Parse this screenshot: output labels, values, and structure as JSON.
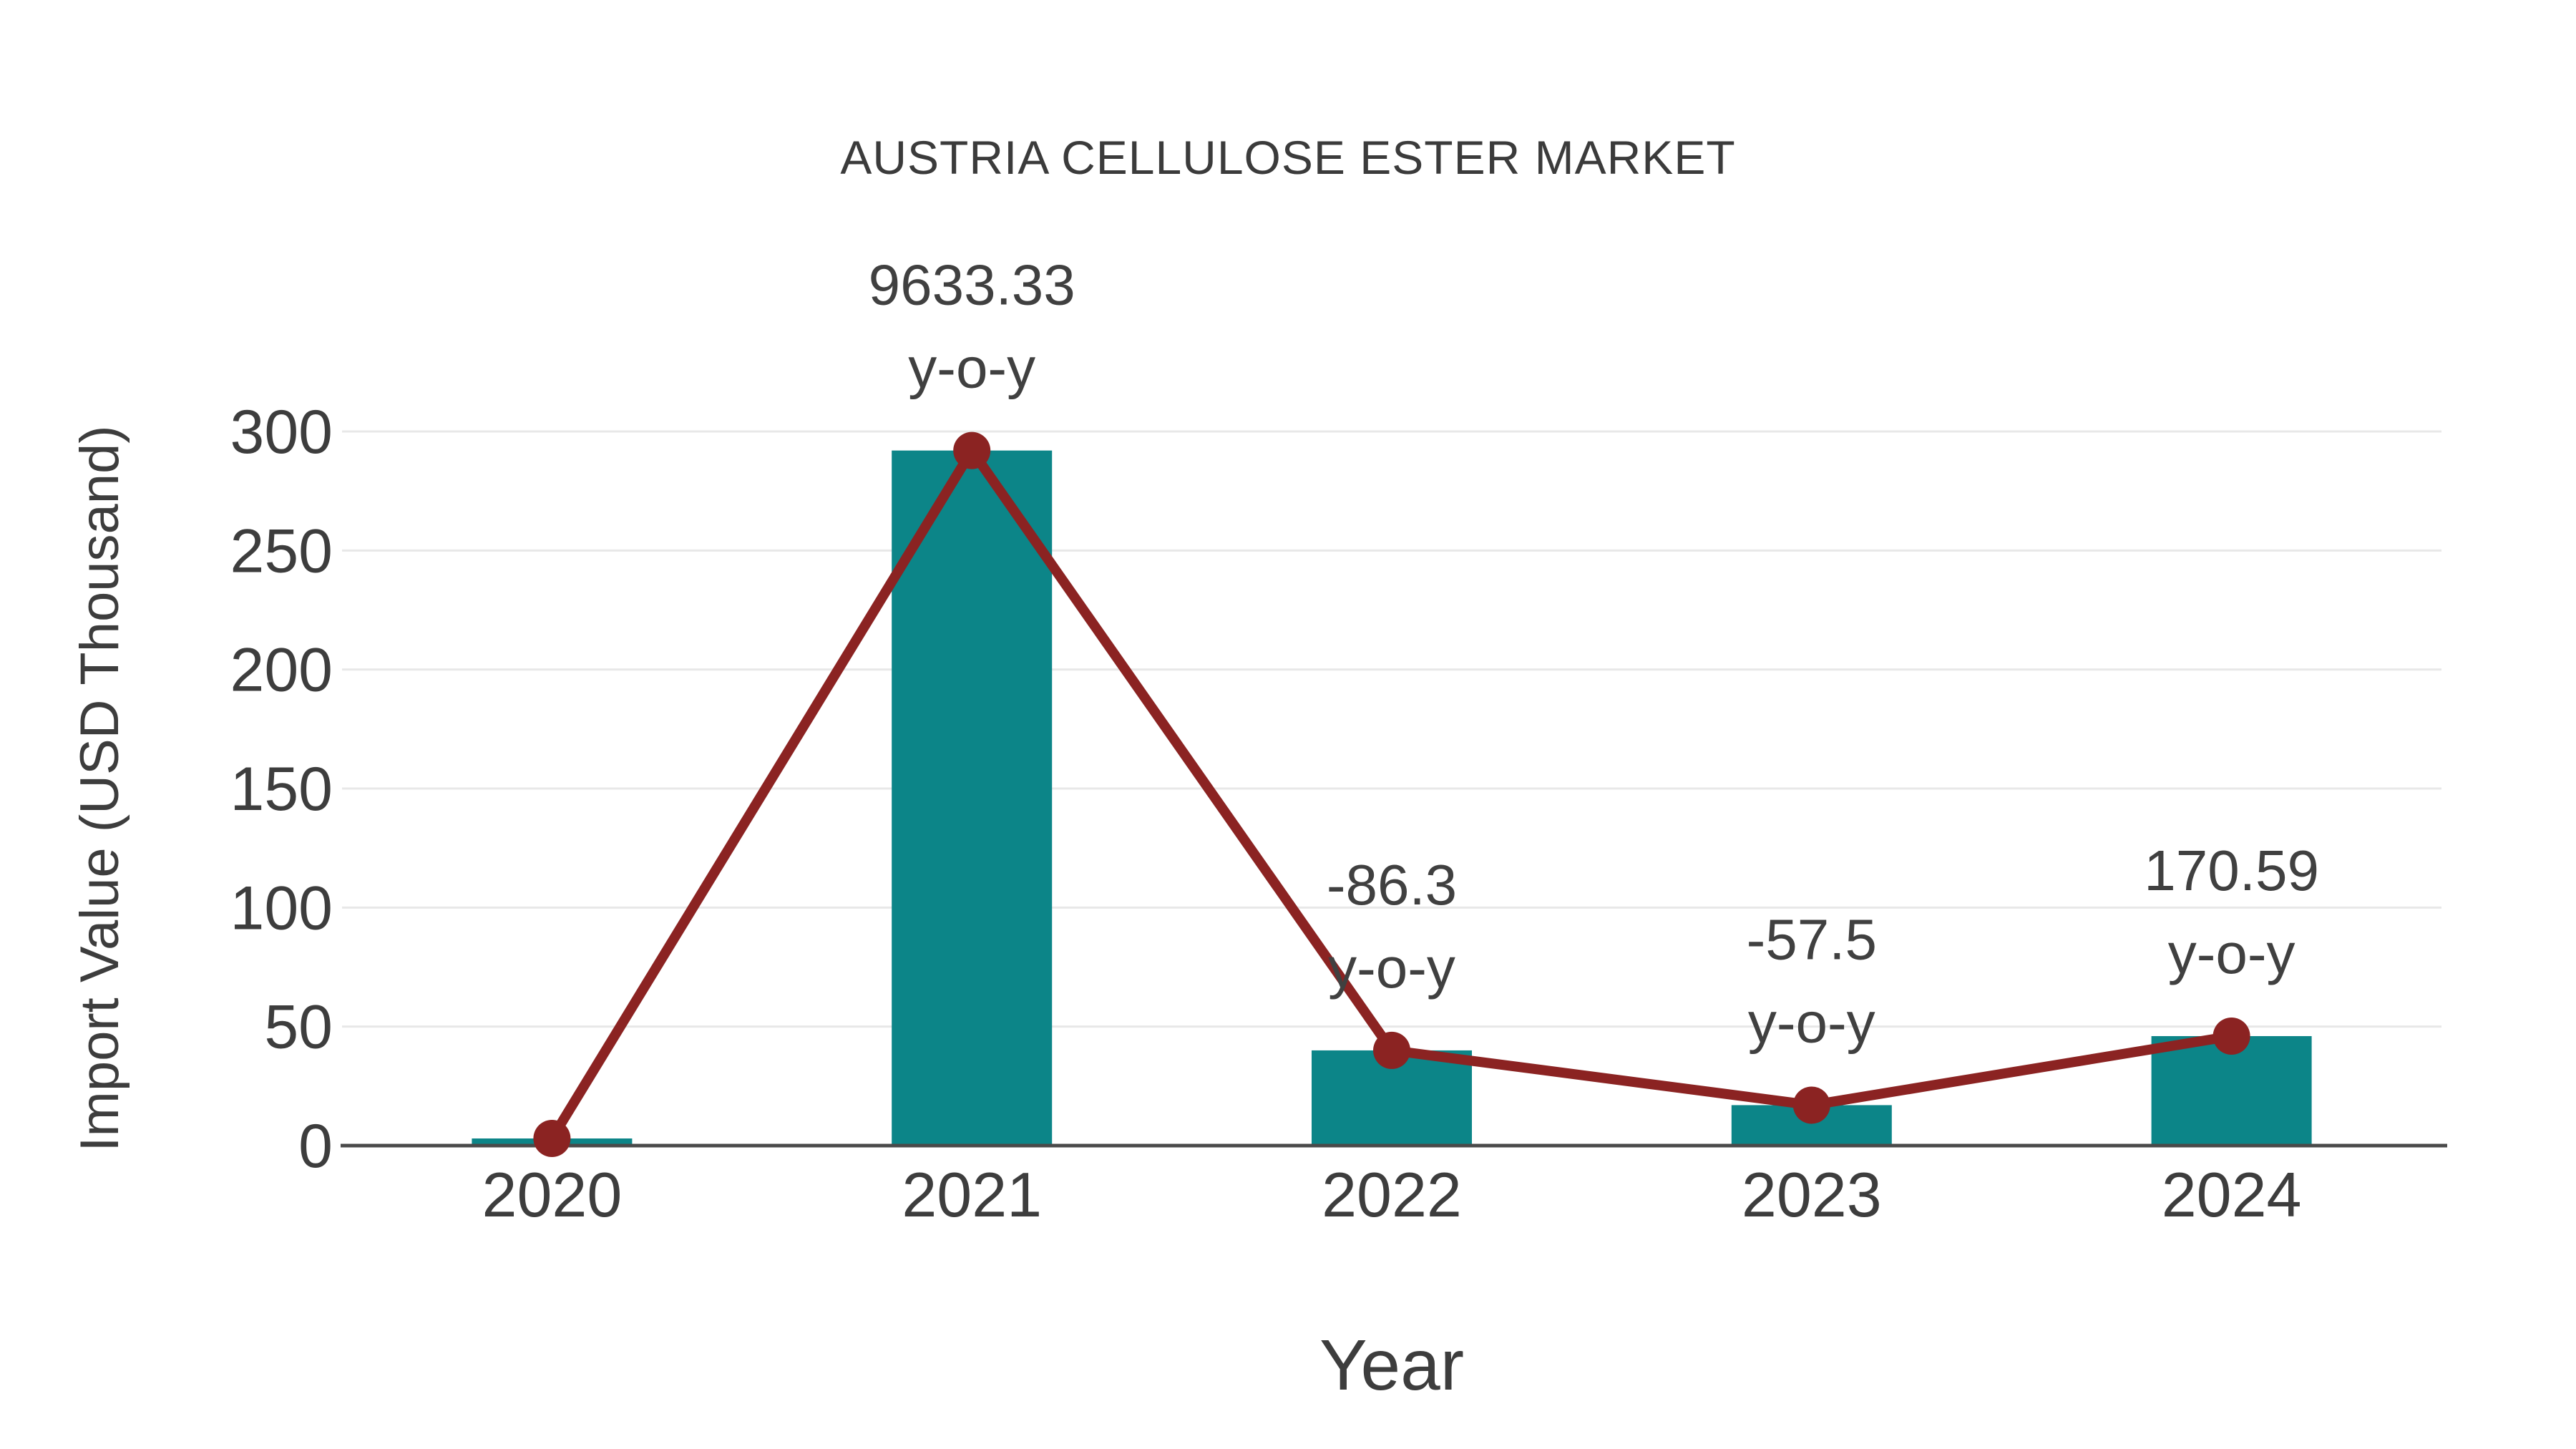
{
  "chart_data": {
    "type": "bar",
    "title": "AUSTRIA CELLULOSE ESTER MARKET",
    "xlabel": "Year",
    "ylabel": "Import Value (USD Thousand)",
    "categories": [
      "2020",
      "2021",
      "2022",
      "2023",
      "2024"
    ],
    "series": [
      {
        "name": "Import Value (USD Thousand)",
        "type": "bar",
        "values": [
          3,
          292,
          40,
          17,
          46
        ]
      },
      {
        "name": "y-o-y growth line",
        "type": "line",
        "values": [
          3,
          292,
          40,
          17,
          46
        ]
      }
    ],
    "annotations": [
      {
        "category": "2021",
        "value_label": "9633.33",
        "suffix_label": "y-o-y",
        "yoy_percent": 9633.33
      },
      {
        "category": "2022",
        "value_label": "-86.3",
        "suffix_label": "y-o-y",
        "yoy_percent": -86.3
      },
      {
        "category": "2023",
        "value_label": "-57.5",
        "suffix_label": "y-o-y",
        "yoy_percent": -57.5
      },
      {
        "category": "2024",
        "value_label": "170.59",
        "suffix_label": "y-o-y",
        "yoy_percent": 170.59
      }
    ],
    "ylim": [
      0,
      300
    ],
    "yticks": [
      0,
      50,
      100,
      150,
      200,
      250,
      300
    ],
    "grid": true,
    "legend_position": "none",
    "colors": {
      "bar": "#0c8588",
      "line": "#8b2322",
      "marker": "#8b2322",
      "grid": "#e8e8e8",
      "axis_line": "#4a4a4a",
      "tick_text": "#3d3d3d",
      "annotation_text": "#404040",
      "title_text": "#3b3b3b",
      "background": "#ffffff"
    }
  }
}
